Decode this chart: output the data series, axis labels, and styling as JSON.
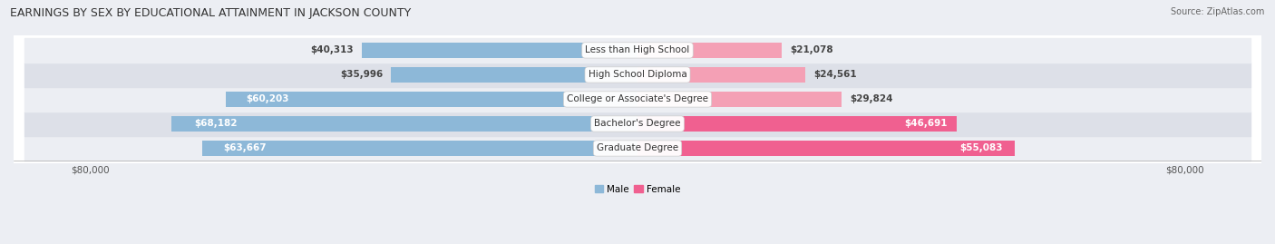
{
  "title": "EARNINGS BY SEX BY EDUCATIONAL ATTAINMENT IN JACKSON COUNTY",
  "source": "Source: ZipAtlas.com",
  "categories": [
    "Less than High School",
    "High School Diploma",
    "College or Associate's Degree",
    "Bachelor's Degree",
    "Graduate Degree"
  ],
  "male_values": [
    40313,
    35996,
    60203,
    68182,
    63667
  ],
  "female_values": [
    21078,
    24561,
    29824,
    46691,
    55083
  ],
  "male_color": "#8db8d8",
  "female_color": "#f4a0b5",
  "female_color_dark": "#f06090",
  "row_bg_light": "#eceef3",
  "row_bg_dark": "#dde0e8",
  "x_max": 80000,
  "x_tick_labels": [
    "$80,000",
    "$80,000"
  ],
  "title_fontsize": 9,
  "source_fontsize": 7,
  "bar_label_fontsize": 7.5,
  "cat_label_fontsize": 7.5,
  "legend_fontsize": 7.5,
  "axis_label_fontsize": 7.5,
  "male_inside_threshold": 55000,
  "female_inside_threshold": 46000
}
